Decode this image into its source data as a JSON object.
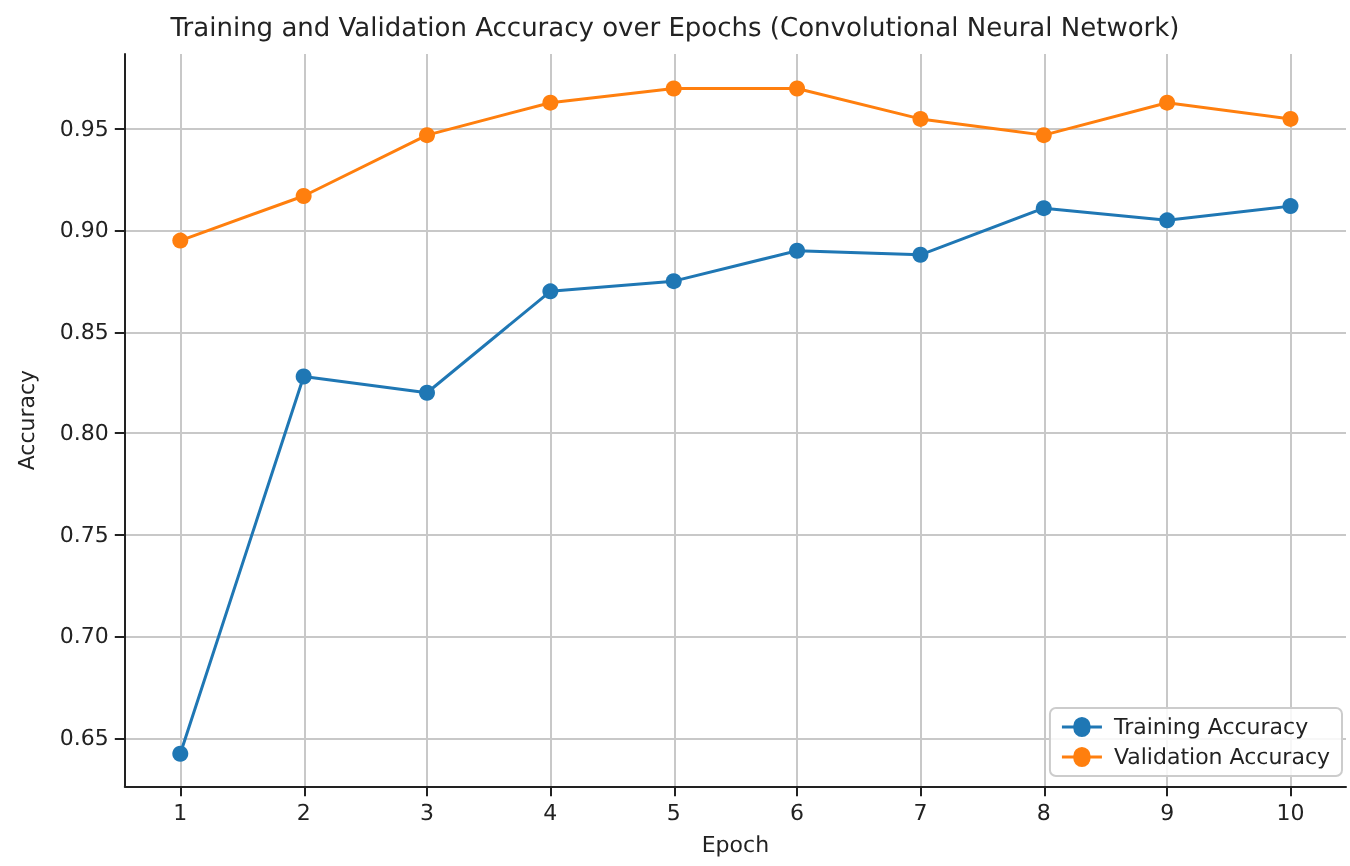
{
  "chart_data": {
    "type": "line",
    "title": "Training and Validation Accuracy over Epochs (Convolutional Neural Network)",
    "xlabel": "Epoch",
    "ylabel": "Accuracy",
    "x": [
      1,
      2,
      3,
      4,
      5,
      6,
      7,
      8,
      9,
      10
    ],
    "series": [
      {
        "name": "Training Accuracy",
        "color": "#1f77b4",
        "values": [
          0.642,
          0.828,
          0.82,
          0.87,
          0.875,
          0.89,
          0.888,
          0.911,
          0.905,
          0.912
        ]
      },
      {
        "name": "Validation Accuracy",
        "color": "#ff7f0e",
        "values": [
          0.895,
          0.917,
          0.947,
          0.963,
          0.97,
          0.97,
          0.955,
          0.947,
          0.963,
          0.955
        ]
      }
    ],
    "xlim": [
      0.55,
      10.45
    ],
    "xticks": [
      1,
      2,
      3,
      4,
      5,
      6,
      7,
      8,
      9,
      10
    ],
    "ylim": [
      0.626,
      0.987
    ],
    "yticks": [
      0.65,
      {
        "value": 0.7,
        "label": "0.70"
      },
      0.75,
      {
        "value": 0.8,
        "label": "0.80"
      },
      0.85,
      {
        "value": 0.9,
        "label": "0.90"
      },
      0.95
    ],
    "grid": true,
    "legend": "bottom right",
    "marker": "circle",
    "line_style": "solid"
  }
}
